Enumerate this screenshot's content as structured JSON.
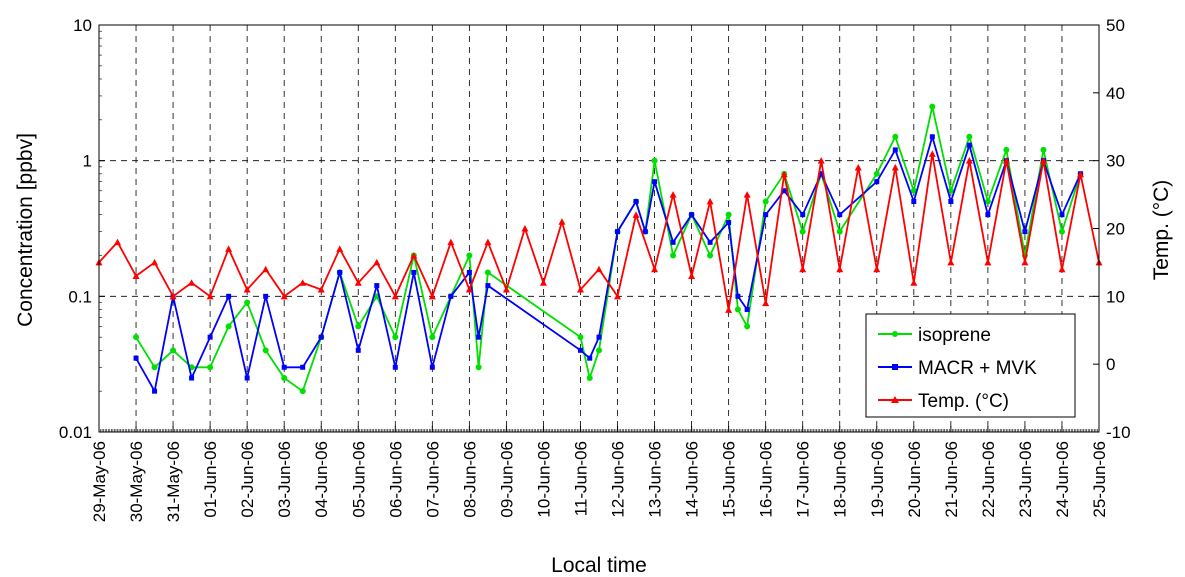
{
  "chart_data": {
    "type": "line",
    "title": "",
    "xlabel": "Local time",
    "ylabel": "Concentration [ppbv]",
    "ylabel_right": "Temp. (°C)",
    "y_scale": "log",
    "ylim": [
      0.01,
      10
    ],
    "y_ticks": [
      "0.01",
      "0.1",
      "1",
      "10"
    ],
    "y2lim": [
      -10,
      50
    ],
    "y2_ticks": [
      "-10",
      "0",
      "10",
      "20",
      "30",
      "40",
      "50"
    ],
    "xlim": [
      "2006-05-29",
      "2006-06-25"
    ],
    "x_tick_labels": [
      "29-May-06",
      "30-May-06",
      "31-May-06",
      "01-Jun-06",
      "02-Jun-06",
      "03-Jun-06",
      "04-Jun-06",
      "05-Jun-06",
      "06-Jun-06",
      "07-Jun-06",
      "08-Jun-06",
      "09-Jun-06",
      "10-Jun-06",
      "11-Jun-06",
      "12-Jun-06",
      "13-Jun-06",
      "14-Jun-06",
      "15-Jun-06",
      "16-Jun-06",
      "17-Jun-06",
      "18-Jun-06",
      "19-Jun-06",
      "20-Jun-06",
      "21-Jun-06",
      "22-Jun-06",
      "23-Jun-06",
      "24-Jun-06",
      "25-Jun-06"
    ],
    "grid": "dashed",
    "legend_position": "bottom-right",
    "series": [
      {
        "name": "isoprene",
        "axis": "left",
        "color": "#00e000",
        "marker": "circle",
        "x": [
          "2006-05-30 00:00",
          "2006-05-30 12:00",
          "2006-05-31 00:00",
          "2006-05-31 12:00",
          "2006-06-01 00:00",
          "2006-06-01 12:00",
          "2006-06-02 00:00",
          "2006-06-02 12:00",
          "2006-06-03 00:00",
          "2006-06-03 12:00",
          "2006-06-04 00:00",
          "2006-06-04 12:00",
          "2006-06-05 00:00",
          "2006-06-05 12:00",
          "2006-06-06 00:00",
          "2006-06-06 12:00",
          "2006-06-07 00:00",
          "2006-06-07 12:00",
          "2006-06-08 00:00",
          "2006-06-08 06:00",
          "2006-06-08 12:00",
          "2006-06-11 00:00",
          "2006-06-11 06:00",
          "2006-06-11 12:00",
          "2006-06-12 00:00",
          "2006-06-12 12:00",
          "2006-06-12 18:00",
          "2006-06-13 00:00",
          "2006-06-13 12:00",
          "2006-06-14 00:00",
          "2006-06-14 12:00",
          "2006-06-15 00:00",
          "2006-06-15 06:00",
          "2006-06-15 12:00",
          "2006-06-16 00:00",
          "2006-06-16 12:00",
          "2006-06-17 00:00",
          "2006-06-17 12:00",
          "2006-06-18 00:00",
          "2006-06-19 00:00",
          "2006-06-19 12:00",
          "2006-06-20 00:00",
          "2006-06-20 12:00",
          "2006-06-21 00:00",
          "2006-06-21 12:00",
          "2006-06-22 00:00",
          "2006-06-22 12:00",
          "2006-06-23 00:00",
          "2006-06-23 12:00",
          "2006-06-24 00:00",
          "2006-06-24 12:00"
        ],
        "values": [
          0.05,
          0.03,
          0.04,
          0.03,
          0.03,
          0.06,
          0.09,
          0.04,
          0.025,
          0.02,
          0.05,
          0.15,
          0.06,
          0.1,
          0.05,
          0.2,
          0.05,
          0.1,
          0.2,
          0.03,
          0.15,
          0.05,
          0.025,
          0.04,
          0.3,
          0.5,
          0.3,
          1.0,
          0.2,
          0.4,
          0.2,
          0.4,
          0.08,
          0.06,
          0.5,
          0.8,
          0.3,
          0.8,
          0.3,
          0.8,
          1.5,
          0.6,
          2.5,
          0.6,
          1.5,
          0.5,
          1.2,
          0.2,
          1.2,
          0.3,
          0.8
        ]
      },
      {
        "name": "MACR + MVK",
        "axis": "left",
        "color": "#0000ff",
        "marker": "square",
        "x": [
          "2006-05-30 00:00",
          "2006-05-30 12:00",
          "2006-05-31 00:00",
          "2006-05-31 12:00",
          "2006-06-01 00:00",
          "2006-06-01 12:00",
          "2006-06-02 00:00",
          "2006-06-02 12:00",
          "2006-06-03 00:00",
          "2006-06-03 12:00",
          "2006-06-04 00:00",
          "2006-06-04 12:00",
          "2006-06-05 00:00",
          "2006-06-05 12:00",
          "2006-06-06 00:00",
          "2006-06-06 12:00",
          "2006-06-07 00:00",
          "2006-06-07 12:00",
          "2006-06-08 00:00",
          "2006-06-08 06:00",
          "2006-06-08 12:00",
          "2006-06-11 00:00",
          "2006-06-11 06:00",
          "2006-06-11 12:00",
          "2006-06-12 00:00",
          "2006-06-12 12:00",
          "2006-06-12 18:00",
          "2006-06-13 00:00",
          "2006-06-13 12:00",
          "2006-06-14 00:00",
          "2006-06-14 12:00",
          "2006-06-15 00:00",
          "2006-06-15 06:00",
          "2006-06-15 12:00",
          "2006-06-16 00:00",
          "2006-06-16 12:00",
          "2006-06-17 00:00",
          "2006-06-17 12:00",
          "2006-06-18 00:00",
          "2006-06-19 00:00",
          "2006-06-19 12:00",
          "2006-06-20 00:00",
          "2006-06-20 12:00",
          "2006-06-21 00:00",
          "2006-06-21 12:00",
          "2006-06-22 00:00",
          "2006-06-22 12:00",
          "2006-06-23 00:00",
          "2006-06-23 12:00",
          "2006-06-24 00:00",
          "2006-06-24 12:00"
        ],
        "values": [
          0.035,
          0.02,
          0.1,
          0.025,
          0.05,
          0.1,
          0.025,
          0.1,
          0.03,
          0.03,
          0.05,
          0.15,
          0.04,
          0.12,
          0.03,
          0.15,
          0.03,
          0.1,
          0.15,
          0.05,
          0.12,
          0.04,
          0.035,
          0.05,
          0.3,
          0.5,
          0.3,
          0.7,
          0.25,
          0.4,
          0.25,
          0.35,
          0.1,
          0.08,
          0.4,
          0.6,
          0.4,
          0.8,
          0.4,
          0.7,
          1.2,
          0.5,
          1.5,
          0.5,
          1.3,
          0.4,
          1.0,
          0.3,
          1.0,
          0.4,
          0.8
        ]
      },
      {
        "name": "Temp. (°C)",
        "axis": "right",
        "color": "#ff0000",
        "marker": "triangle",
        "x": [
          "2006-05-29 00:00",
          "2006-05-29 12:00",
          "2006-05-30 00:00",
          "2006-05-30 12:00",
          "2006-05-31 00:00",
          "2006-05-31 12:00",
          "2006-06-01 00:00",
          "2006-06-01 12:00",
          "2006-06-02 00:00",
          "2006-06-02 12:00",
          "2006-06-03 00:00",
          "2006-06-03 12:00",
          "2006-06-04 00:00",
          "2006-06-04 12:00",
          "2006-06-05 00:00",
          "2006-06-05 12:00",
          "2006-06-06 00:00",
          "2006-06-06 12:00",
          "2006-06-07 00:00",
          "2006-06-07 12:00",
          "2006-06-08 00:00",
          "2006-06-08 12:00",
          "2006-06-09 00:00",
          "2006-06-09 12:00",
          "2006-06-10 00:00",
          "2006-06-10 12:00",
          "2006-06-11 00:00",
          "2006-06-11 12:00",
          "2006-06-12 00:00",
          "2006-06-12 12:00",
          "2006-06-13 00:00",
          "2006-06-13 12:00",
          "2006-06-14 00:00",
          "2006-06-14 12:00",
          "2006-06-15 00:00",
          "2006-06-15 12:00",
          "2006-06-16 00:00",
          "2006-06-16 12:00",
          "2006-06-17 00:00",
          "2006-06-17 12:00",
          "2006-06-18 00:00",
          "2006-06-18 12:00",
          "2006-06-19 00:00",
          "2006-06-19 12:00",
          "2006-06-20 00:00",
          "2006-06-20 12:00",
          "2006-06-21 00:00",
          "2006-06-21 12:00",
          "2006-06-22 00:00",
          "2006-06-22 12:00",
          "2006-06-23 00:00",
          "2006-06-23 12:00",
          "2006-06-24 00:00",
          "2006-06-24 12:00",
          "2006-06-25 00:00"
        ],
        "values": [
          15,
          18,
          13,
          15,
          10,
          12,
          10,
          17,
          11,
          14,
          10,
          12,
          11,
          17,
          12,
          15,
          10,
          16,
          10,
          18,
          11,
          18,
          11,
          20,
          12,
          21,
          11,
          14,
          10,
          22,
          14,
          25,
          13,
          24,
          8,
          25,
          9,
          28,
          14,
          30,
          14,
          29,
          14,
          29,
          12,
          31,
          15,
          30,
          15,
          30,
          15,
          30,
          14,
          28,
          15
        ]
      }
    ]
  }
}
